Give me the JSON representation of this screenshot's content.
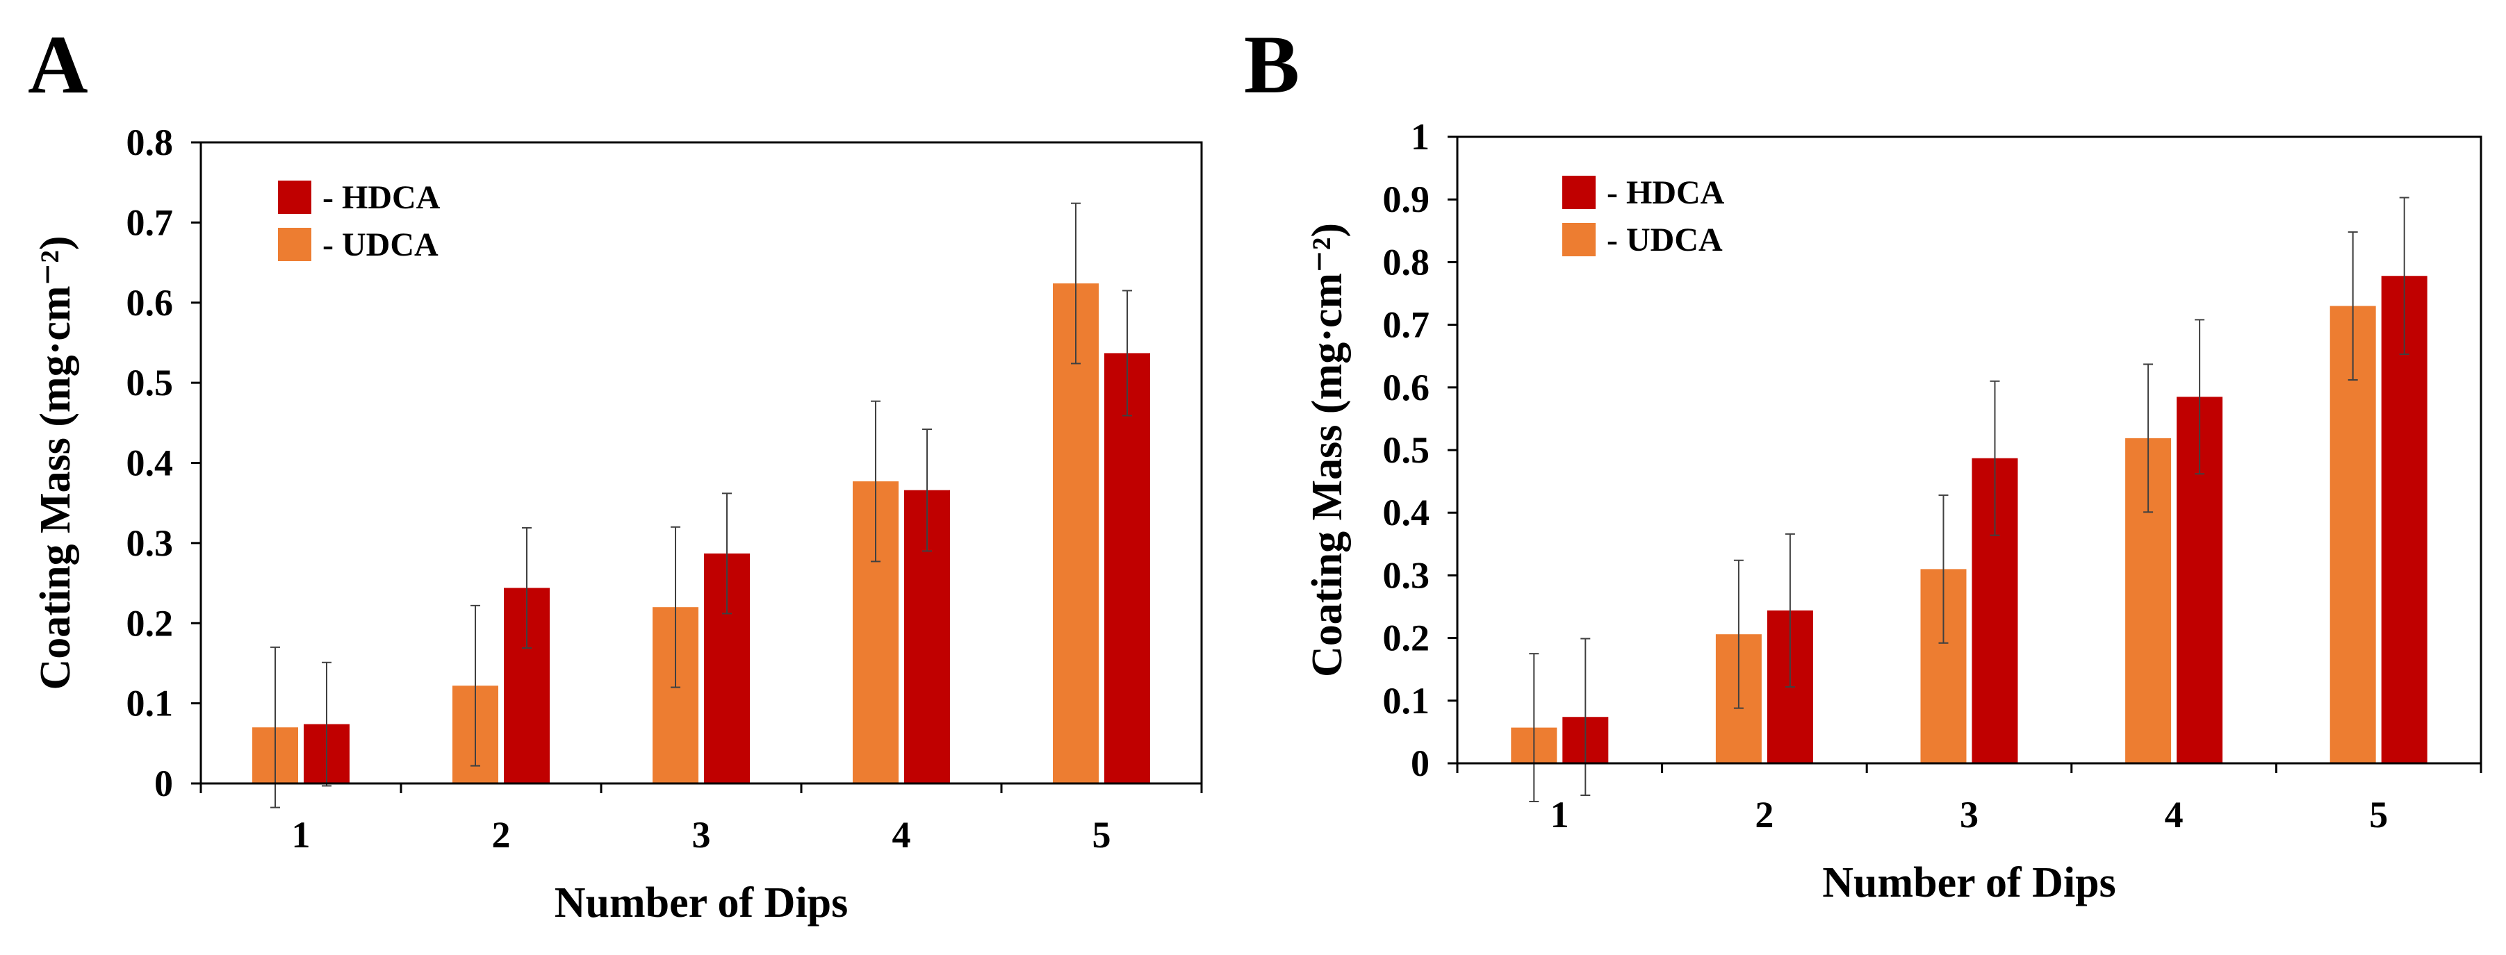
{
  "colors": {
    "udca": "#ED7D31",
    "hdca": "#C00000",
    "axis": "#000000",
    "errorbar": "#404040"
  },
  "chart_data": [
    {
      "panel_label": "A",
      "type": "bar",
      "title": "",
      "xlabel": "Number of Dips",
      "ylabel": "Coating Mass (mg·cm⁻²)",
      "ylim": [
        0,
        0.8
      ],
      "ytick_labels": [
        "0",
        "0.1",
        "0.2",
        "0.3",
        "0.4",
        "0.5",
        "0.6",
        "0.7",
        "0.8"
      ],
      "categories": [
        "1",
        "2",
        "3",
        "4",
        "5"
      ],
      "legend_position": "top-left",
      "grid": false,
      "series": [
        {
          "name": "- UDCA",
          "color": "#ED7D31",
          "values": [
            0.07,
            0.122,
            0.22,
            0.377,
            0.624
          ],
          "errors": [
            0.1,
            0.1,
            0.1,
            0.1,
            0.1
          ]
        },
        {
          "name": "- HDCA",
          "color": "#C00000",
          "values": [
            0.074,
            0.244,
            0.287,
            0.366,
            0.537
          ],
          "errors": [
            0.077,
            0.075,
            0.075,
            0.076,
            0.078
          ]
        }
      ]
    },
    {
      "panel_label": "B",
      "type": "bar",
      "title": "",
      "xlabel": "Number of Dips",
      "ylabel": "Coating Mass (mg·cm⁻²)",
      "ylim": [
        0,
        1
      ],
      "ytick_labels": [
        "0",
        "0.1",
        "0.2",
        "0.3",
        "0.4",
        "0.5",
        "0.6",
        "0.7",
        "0.8",
        "0.9",
        "1"
      ],
      "categories": [
        "1",
        "2",
        "3",
        "4",
        "5"
      ],
      "legend_position": "top-left",
      "grid": false,
      "series": [
        {
          "name": "- UDCA",
          "color": "#ED7D31",
          "values": [
            0.057,
            0.206,
            0.31,
            0.519,
            0.73
          ],
          "errors": [
            0.118,
            0.118,
            0.118,
            0.118,
            0.118
          ]
        },
        {
          "name": "- HDCA",
          "color": "#C00000",
          "values": [
            0.074,
            0.244,
            0.487,
            0.585,
            0.778
          ],
          "errors": [
            0.125,
            0.122,
            0.123,
            0.123,
            0.125
          ]
        }
      ]
    }
  ]
}
